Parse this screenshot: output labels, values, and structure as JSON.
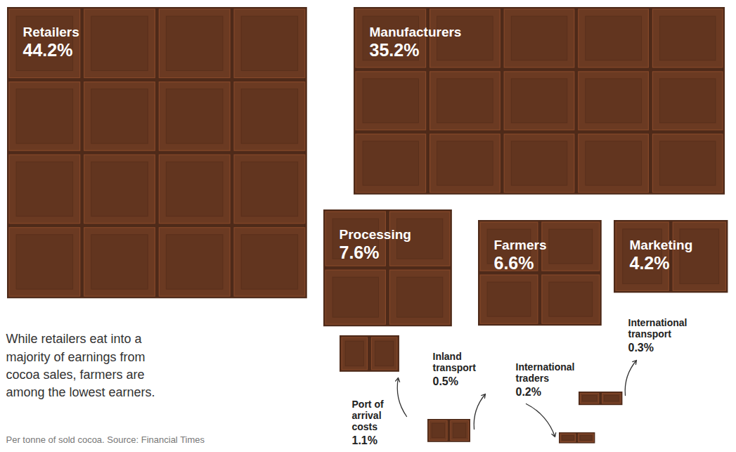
{
  "chart_data": {
    "type": "treemap",
    "subtitle": "While retailers eat into a majority of earnings from cocoa sales, farmers are among the lowest earners.",
    "caption": "Per tonne of sold cocoa. Source: Financial Times",
    "categories": [
      "Retailers",
      "Manufacturers",
      "Processing",
      "Farmers",
      "Marketing",
      "Port of arrival costs",
      "Inland transport",
      "International traders",
      "International transport"
    ],
    "values": [
      44.2,
      35.2,
      7.6,
      6.6,
      4.2,
      1.1,
      0.5,
      0.2,
      0.3
    ],
    "value_labels": [
      "44.2%",
      "35.2%",
      "7.6%",
      "6.6%",
      "4.2%",
      "1.1%",
      "0.5%",
      "0.2%",
      "0.3%"
    ],
    "color": "#6b3a22",
    "data_labels": true,
    "tick_labels": false
  }
}
